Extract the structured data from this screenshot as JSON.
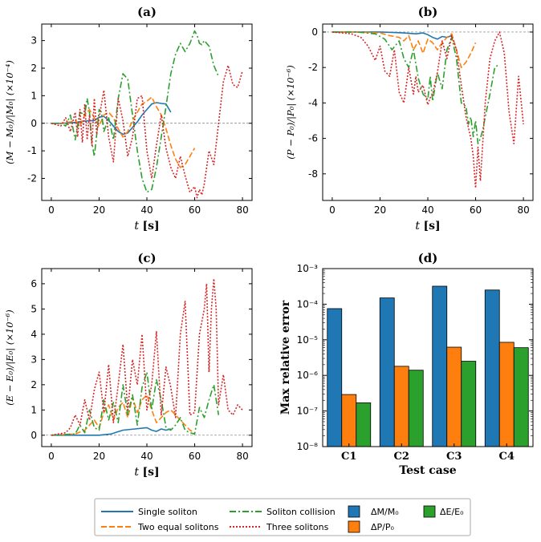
{
  "colors": {
    "single": "#1f77b4",
    "two": "#ff7f0e",
    "collision": "#2ca02c",
    "three": "#d62728"
  },
  "legend": {
    "single": "Single soliton",
    "two": "Two equal solitons",
    "collision": "Soliton collision",
    "three": "Three solitons",
    "dM": "ΔM/M₀",
    "dP": "ΔP/P₀",
    "dE": "ΔE/E₀"
  },
  "chart_data": [
    {
      "id": "a",
      "type": "line",
      "title": "(a)",
      "xlabel_var": "t",
      "xlabel_unit": "[s]",
      "ylabel": "(M − M₀)/|M₀| (×10⁻⁴)",
      "xlim": [
        -4,
        84
      ],
      "ylim": [
        -2.8,
        3.6
      ],
      "xticks": [
        0,
        20,
        40,
        60,
        80
      ],
      "yticks": [
        -2,
        -1,
        0,
        1,
        2,
        3
      ],
      "series": [
        {
          "name": "Single soliton",
          "key": "single",
          "x": [
            0,
            5,
            10,
            14,
            18,
            20,
            22,
            24,
            26,
            28,
            30,
            32,
            34,
            36,
            38,
            40,
            42,
            44,
            46,
            48,
            50
          ],
          "y": [
            0,
            0,
            0.03,
            0.08,
            0.1,
            0.22,
            0.25,
            0.1,
            -0.1,
            -0.3,
            -0.4,
            -0.35,
            -0.15,
            0.05,
            0.3,
            0.5,
            0.7,
            0.75,
            0.72,
            0.7,
            0.4
          ]
        },
        {
          "name": "Two equal solitons",
          "key": "two",
          "x": [
            0,
            4,
            8,
            10,
            12,
            14,
            16,
            18,
            20,
            22,
            24,
            26,
            28,
            30,
            32,
            34,
            36,
            38,
            40,
            42,
            44,
            46,
            48,
            50,
            52,
            54,
            56,
            58,
            60
          ],
          "y": [
            0,
            0,
            0.05,
            0.1,
            -0.1,
            0.3,
            0.5,
            0.2,
            -0.1,
            0.3,
            0.4,
            0.2,
            -0.2,
            -0.5,
            -0.3,
            0.1,
            0.4,
            0.7,
            0.8,
            0.95,
            0.6,
            0.3,
            -0.2,
            -0.8,
            -1.3,
            -1.6,
            -1.5,
            -1.2,
            -0.9
          ]
        },
        {
          "name": "Soliton collision",
          "key": "collision",
          "x": [
            0,
            4,
            6,
            8,
            10,
            12,
            14,
            15,
            16,
            17,
            18,
            19,
            20,
            21,
            22,
            24,
            26,
            28,
            30,
            32,
            34,
            36,
            38,
            40,
            42,
            44,
            46,
            48,
            50,
            52,
            54,
            56,
            58,
            60,
            61,
            62,
            63,
            64,
            66,
            68,
            70
          ],
          "y": [
            0,
            0,
            -0.1,
            0.3,
            -0.6,
            0.4,
            0.3,
            0.9,
            0.4,
            -0.7,
            -1.2,
            -0.4,
            0.5,
            0.4,
            -0.3,
            0.2,
            -0.6,
            0.9,
            1.8,
            1.6,
            0.3,
            -1.0,
            -2.0,
            -2.5,
            -2.4,
            -1.6,
            -0.5,
            0.6,
            1.8,
            2.5,
            2.9,
            2.6,
            2.9,
            3.35,
            3.2,
            2.9,
            2.85,
            3.0,
            2.8,
            2.1,
            1.7
          ]
        },
        {
          "name": "Three solitons",
          "key": "three",
          "x": [
            0,
            4,
            6,
            8,
            10,
            11,
            12,
            13,
            14,
            15,
            16,
            17,
            18,
            19,
            20,
            22,
            24,
            26,
            28,
            30,
            32,
            34,
            36,
            38,
            40,
            42,
            44,
            46,
            48,
            50,
            52,
            54,
            56,
            58,
            60,
            61,
            62,
            63,
            64,
            66,
            68,
            70,
            72,
            74,
            76,
            78,
            80
          ],
          "y": [
            0,
            -0.1,
            0.2,
            -0.3,
            0.4,
            -0.5,
            0.5,
            -0.7,
            0.7,
            -0.6,
            0.3,
            -0.8,
            0.9,
            -0.4,
            0.2,
            1.2,
            -0.5,
            -1.4,
            0.9,
            0.1,
            -1.2,
            -0.5,
            0.9,
            1.0,
            -1.0,
            -2.0,
            -0.8,
            0.3,
            -0.9,
            -1.6,
            -2.0,
            -1.2,
            -1.9,
            -2.5,
            -2.3,
            -2.7,
            -2.4,
            -2.6,
            -2.2,
            -1.0,
            -1.5,
            0.0,
            1.5,
            2.1,
            1.4,
            1.3,
            1.9
          ]
        }
      ]
    },
    {
      "id": "b",
      "type": "line",
      "title": "(b)",
      "xlabel_var": "t",
      "xlabel_unit": "[s]",
      "ylabel": "(P − P₀)/|P₀| (×10⁻⁶)",
      "xlim": [
        -4,
        84
      ],
      "ylim": [
        -9.5,
        0.45
      ],
      "xticks": [
        0,
        20,
        40,
        60,
        80
      ],
      "yticks": [
        -8,
        -6,
        -4,
        -2,
        0
      ],
      "series": [
        {
          "name": "Single soliton",
          "key": "single",
          "x": [
            0,
            10,
            20,
            25,
            30,
            35,
            38,
            40,
            42,
            44,
            46,
            48,
            50
          ],
          "y": [
            0,
            0,
            0,
            -0.02,
            -0.05,
            -0.1,
            -0.05,
            -0.15,
            -0.3,
            -0.4,
            -0.25,
            -0.3,
            -0.2
          ]
        },
        {
          "name": "Two equal solitons",
          "key": "two",
          "x": [
            0,
            10,
            20,
            24,
            28,
            30,
            32,
            34,
            36,
            38,
            40,
            42,
            44,
            46,
            48,
            50,
            52,
            54,
            56,
            58,
            60
          ],
          "y": [
            0,
            0,
            -0.05,
            -0.2,
            -0.3,
            -0.5,
            -0.2,
            -1.0,
            -0.5,
            -1.2,
            -0.4,
            -0.6,
            -1.0,
            -0.6,
            -0.3,
            -0.1,
            -1.0,
            -2.0,
            -1.7,
            -1.2,
            -0.6
          ]
        },
        {
          "name": "Soliton collision",
          "key": "collision",
          "x": [
            0,
            10,
            18,
            22,
            25,
            28,
            30,
            32,
            34,
            36,
            38,
            40,
            41,
            42,
            44,
            46,
            48,
            50,
            52,
            54,
            56,
            57,
            58,
            59,
            60,
            61,
            62,
            63,
            64,
            66,
            68,
            70
          ],
          "y": [
            0,
            0,
            -0.1,
            -0.4,
            -1.0,
            -0.5,
            -1.5,
            -2.0,
            -1.0,
            -2.6,
            -3.5,
            -3.8,
            -2.5,
            -3.9,
            -2.3,
            -3.2,
            -1.0,
            -0.3,
            -1.5,
            -4.0,
            -4.2,
            -5.2,
            -4.8,
            -5.9,
            -5.0,
            -6.3,
            -6.0,
            -5.5,
            -4.8,
            -3.5,
            -2.0,
            -1.8
          ]
        },
        {
          "name": "Three solitons",
          "key": "three",
          "x": [
            0,
            8,
            12,
            15,
            18,
            20,
            22,
            24,
            26,
            28,
            30,
            32,
            34,
            35,
            36,
            38,
            40,
            41,
            42,
            44,
            46,
            48,
            50,
            52,
            54,
            56,
            58,
            59,
            60,
            61,
            62,
            64,
            66,
            68,
            70,
            72,
            74,
            76,
            78,
            80
          ],
          "y": [
            0,
            -0.1,
            -0.3,
            -0.8,
            -1.6,
            -0.8,
            -2.2,
            -2.5,
            -1.0,
            -3.4,
            -4.0,
            -2.0,
            -3.5,
            -2.5,
            -3.4,
            -3.0,
            -4.1,
            -3.7,
            -3.5,
            -2.3,
            -0.5,
            -1.5,
            -0.2,
            -1.0,
            -3.0,
            -4.8,
            -6.0,
            -7.0,
            -8.8,
            -6.5,
            -8.4,
            -4.0,
            -1.5,
            -0.5,
            0.0,
            -1.2,
            -4.5,
            -6.3,
            -2.5,
            -5.2
          ]
        }
      ]
    },
    {
      "id": "c",
      "type": "line",
      "title": "(c)",
      "xlabel_var": "t",
      "xlabel_unit": "[s]",
      "ylabel": "(E − E₀)/|E₀| (×10⁻⁶)",
      "xlim": [
        -4,
        84
      ],
      "ylim": [
        -0.45,
        6.6
      ],
      "xticks": [
        0,
        20,
        40,
        60,
        80
      ],
      "yticks": [
        0,
        1,
        2,
        3,
        4,
        5,
        6
      ],
      "series": [
        {
          "name": "Single soliton",
          "key": "single",
          "x": [
            0,
            10,
            20,
            25,
            30,
            35,
            40,
            42,
            44,
            46,
            48,
            50
          ],
          "y": [
            0,
            0,
            0,
            0.05,
            0.2,
            0.25,
            0.3,
            0.2,
            0.15,
            0.25,
            0.2,
            0.25
          ]
        },
        {
          "name": "Two equal solitons",
          "key": "two",
          "x": [
            0,
            10,
            14,
            16,
            18,
            20,
            22,
            24,
            26,
            28,
            30,
            32,
            34,
            36,
            38,
            40,
            42,
            44,
            46,
            48,
            50,
            52,
            54,
            56,
            58,
            60
          ],
          "y": [
            0,
            0.05,
            0.2,
            0.4,
            0.6,
            0.3,
            0.9,
            1.2,
            0.6,
            1.1,
            1.3,
            0.7,
            1.5,
            0.9,
            1.4,
            1.6,
            1.0,
            0.5,
            0.7,
            0.9,
            1.0,
            0.8,
            0.6,
            0.4,
            0.2,
            0.1
          ]
        },
        {
          "name": "Soliton collision",
          "key": "collision",
          "x": [
            0,
            10,
            12,
            14,
            16,
            18,
            20,
            22,
            24,
            26,
            28,
            30,
            32,
            34,
            36,
            38,
            40,
            42,
            44,
            46,
            48,
            50,
            52,
            54,
            56,
            58,
            60,
            62,
            64,
            66,
            68,
            70
          ],
          "y": [
            0,
            0.05,
            0.4,
            0.1,
            1.0,
            0.3,
            0.2,
            1.4,
            0.6,
            1.3,
            0.5,
            2.0,
            0.8,
            1.6,
            0.4,
            1.9,
            2.5,
            1.0,
            2.2,
            1.4,
            0.3,
            0.2,
            0.4,
            0.7,
            0.2,
            0.1,
            0.05,
            1.1,
            0.7,
            1.4,
            2.0,
            0.8
          ]
        },
        {
          "name": "Three solitons",
          "key": "three",
          "x": [
            0,
            6,
            8,
            10,
            12,
            14,
            16,
            18,
            20,
            22,
            24,
            26,
            28,
            30,
            32,
            34,
            36,
            38,
            40,
            42,
            44,
            46,
            48,
            50,
            52,
            54,
            56,
            58,
            60,
            62,
            64,
            65,
            66,
            67,
            68,
            69,
            70,
            72,
            74,
            76,
            78,
            80
          ],
          "y": [
            0,
            0.1,
            0.3,
            0.8,
            0.4,
            1.4,
            0.6,
            1.8,
            2.5,
            0.9,
            2.8,
            0.5,
            2.0,
            3.6,
            1.0,
            3.0,
            2.0,
            4.0,
            1.0,
            2.0,
            4.1,
            0.8,
            2.7,
            1.9,
            0.7,
            4.0,
            5.3,
            0.8,
            0.9,
            4.0,
            5.0,
            6.0,
            2.5,
            5.0,
            6.2,
            5.0,
            1.2,
            2.4,
            1.0,
            0.8,
            1.2,
            1.0
          ]
        }
      ]
    },
    {
      "id": "d",
      "type": "bar",
      "title": "(d)",
      "xlabel": "Test case",
      "ylabel": "Max relative error",
      "yscale": "log",
      "ylim": [
        1e-08,
        0.001
      ],
      "ytick_labels": [
        "10⁻⁸",
        "10⁻⁷",
        "10⁻⁶",
        "10⁻⁵",
        "10⁻⁴",
        "10⁻³"
      ],
      "categories": [
        "C1",
        "C2",
        "C3",
        "C4"
      ],
      "series": [
        {
          "name": "ΔM/M₀",
          "key": "single",
          "values": [
            7.5e-05,
            0.00015,
            0.00032,
            0.00025
          ]
        },
        {
          "name": "ΔP/P₀",
          "key": "two",
          "values": [
            2.9e-07,
            1.8e-06,
            6.2e-06,
            8.5e-06
          ]
        },
        {
          "name": "ΔE/E₀",
          "key": "collision",
          "values": [
            1.7e-07,
            1.4e-06,
            2.5e-06,
            6e-06
          ]
        }
      ]
    }
  ]
}
